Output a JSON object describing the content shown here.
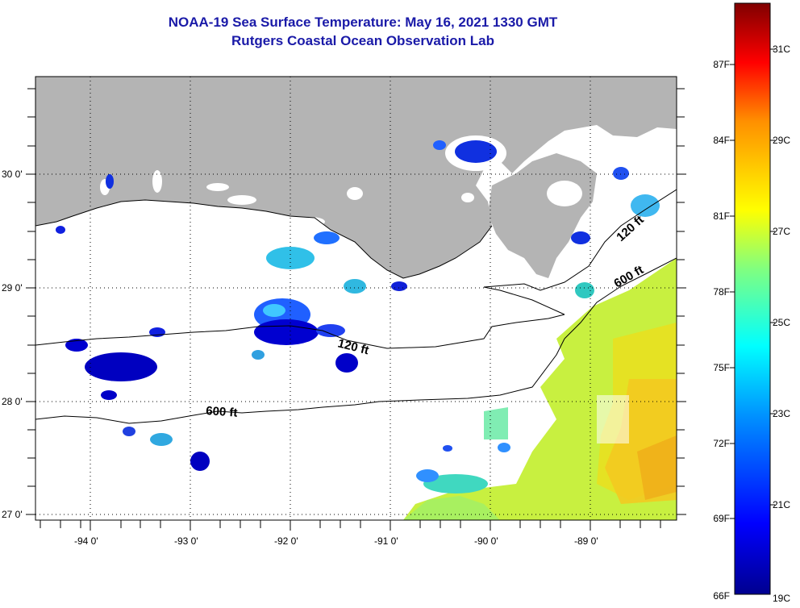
{
  "title_line1": "NOAA-19 Sea Surface Temperature:  May 16, 2021 1330 GMT",
  "title_line2": "Rutgers Coastal Ocean Observation Lab",
  "lat_labels": [
    "30 0'",
    "29 0'",
    "28 0'",
    "27 0'"
  ],
  "lon_labels": [
    "-94 0'",
    "-93 0'",
    "-92 0'",
    "-91 0'",
    "-90 0'",
    "-89 0'"
  ],
  "contours": [
    {
      "label": "120 ft"
    },
    {
      "label": "600 ft"
    },
    {
      "label": "120 ft"
    },
    {
      "label": "600 ft"
    }
  ],
  "colorbar": {
    "fahrenheit": [
      "87F",
      "84F",
      "81F",
      "78F",
      "75F",
      "72F",
      "69F",
      "66F"
    ],
    "celsius": [
      "31C",
      "29C",
      "27C",
      "25C",
      "23C",
      "21C",
      "19C"
    ],
    "colors": [
      "#00008f",
      "#0000ff",
      "#00a0ff",
      "#00ffff",
      "#80ff80",
      "#ffff00",
      "#ff9000",
      "#ff0000",
      "#800000"
    ]
  },
  "colors": {
    "land": "#b4b4b4",
    "title": "#1a1aa8",
    "grid": "#000000"
  }
}
